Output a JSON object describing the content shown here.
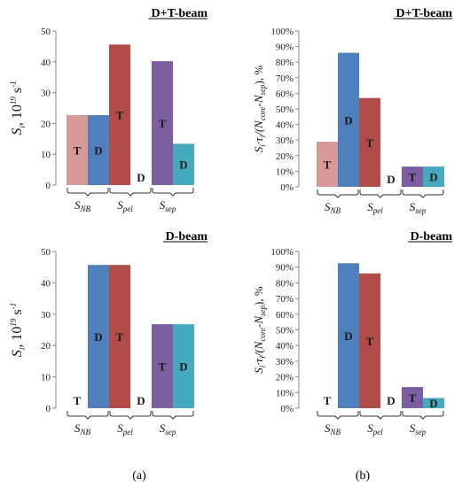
{
  "colors": {
    "T_NB": "#d89a98",
    "D_NB": "#4f7fbc",
    "T_pel": "#b14c48",
    "T_sep": "#7b5fa1",
    "D_sep": "#46a9bd",
    "axis": "#8a8a8a"
  },
  "captions": {
    "a": "(a)",
    "b": "(b)"
  },
  "chart_data": [
    {
      "id": "top-left",
      "type": "bar",
      "title": "D+T-beam",
      "ylabel": {
        "main": "S",
        "sub": "i",
        "rest": ", 10",
        "sup": "19",
        "unit": " s",
        "unitsup": "-1"
      },
      "ylim": [
        0,
        50
      ],
      "yticks": [
        0,
        10,
        20,
        30,
        40,
        50
      ],
      "groups": [
        {
          "main": "S",
          "sub": "NB"
        },
        {
          "main": "S",
          "sub": "pel"
        },
        {
          "main": "S",
          "sub": "sep"
        }
      ],
      "bars": [
        {
          "group": 0,
          "label": "T",
          "value": 22.7,
          "color": "#d89a98"
        },
        {
          "group": 0,
          "label": "D",
          "value": 22.7,
          "color": "#4f7fbc"
        },
        {
          "group": 1,
          "label": "T",
          "value": 45.6,
          "color": "#b14c48"
        },
        {
          "group": 1,
          "label": "D",
          "value": 0,
          "color": "#4f7fbc"
        },
        {
          "group": 2,
          "label": "T",
          "value": 40.2,
          "color": "#7b5fa1"
        },
        {
          "group": 2,
          "label": "D",
          "value": 13.4,
          "color": "#46a9bd"
        }
      ]
    },
    {
      "id": "top-right",
      "type": "bar",
      "title": "D+T-beam",
      "ylabel": {
        "pre": "S",
        "presub": "i",
        "dot": "·τ",
        "dotsub": "i",
        "open": "/(N",
        "coresub": "core",
        "minus": "-N",
        "sepsub": "sep",
        "close": "), %"
      },
      "ylim": [
        0,
        100
      ],
      "yticks": [
        "0%",
        "10%",
        "20%",
        "30%",
        "40%",
        "50%",
        "60%",
        "70%",
        "80%",
        "90%",
        "100%"
      ],
      "groups": [
        {
          "main": "S",
          "sub": "NB"
        },
        {
          "main": "S",
          "sub": "pel"
        },
        {
          "main": "S",
          "sub": "sep"
        }
      ],
      "bars": [
        {
          "group": 0,
          "label": "T",
          "value": 29,
          "color": "#d89a98"
        },
        {
          "group": 0,
          "label": "D",
          "value": 86,
          "color": "#4f7fbc"
        },
        {
          "group": 1,
          "label": "T",
          "value": 57,
          "color": "#b14c48"
        },
        {
          "group": 1,
          "label": "D",
          "value": 0,
          "color": "#4f7fbc"
        },
        {
          "group": 2,
          "label": "T",
          "value": 13,
          "color": "#7b5fa1"
        },
        {
          "group": 2,
          "label": "D",
          "value": 13,
          "color": "#46a9bd"
        }
      ]
    },
    {
      "id": "bottom-left",
      "type": "bar",
      "title": "D-beam",
      "ylabel": {
        "main": "S",
        "sub": "i",
        "rest": ", 10",
        "sup": "19",
        "unit": " s",
        "unitsup": "-1"
      },
      "ylim": [
        0,
        50
      ],
      "yticks": [
        0,
        10,
        20,
        30,
        40,
        50
      ],
      "groups": [
        {
          "main": "S",
          "sub": "NB"
        },
        {
          "main": "S",
          "sub": "pel"
        },
        {
          "main": "S",
          "sub": "sep"
        }
      ],
      "bars": [
        {
          "group": 0,
          "label": "T",
          "value": 0,
          "color": "#d89a98"
        },
        {
          "group": 0,
          "label": "D",
          "value": 45.7,
          "color": "#4f7fbc"
        },
        {
          "group": 1,
          "label": "T",
          "value": 45.7,
          "color": "#b14c48"
        },
        {
          "group": 1,
          "label": "D",
          "value": 0,
          "color": "#4f7fbc"
        },
        {
          "group": 2,
          "label": "T",
          "value": 26.8,
          "color": "#7b5fa1"
        },
        {
          "group": 2,
          "label": "D",
          "value": 26.8,
          "color": "#46a9bd"
        }
      ]
    },
    {
      "id": "bottom-right",
      "type": "bar",
      "title": "D-beam",
      "ylabel": {
        "pre": "S",
        "presub": "i",
        "dot": "·τ",
        "dotsub": "i",
        "open": "/(N",
        "coresub": "core",
        "minus": "-N",
        "sepsub": "sep",
        "close": "), %"
      },
      "ylim": [
        0,
        100
      ],
      "yticks": [
        "0%",
        "10%",
        "20%",
        "30%",
        "40%",
        "50%",
        "60%",
        "70%",
        "80%",
        "90%",
        "100%"
      ],
      "groups": [
        {
          "main": "S",
          "sub": "NB"
        },
        {
          "main": "S",
          "sub": "pel"
        },
        {
          "main": "S",
          "sub": "sep"
        }
      ],
      "bars": [
        {
          "group": 0,
          "label": "T",
          "value": 0,
          "color": "#d89a98"
        },
        {
          "group": 0,
          "label": "D",
          "value": 92.5,
          "color": "#4f7fbc"
        },
        {
          "group": 1,
          "label": "T",
          "value": 86,
          "color": "#b14c48"
        },
        {
          "group": 1,
          "label": "D",
          "value": 0,
          "color": "#4f7fbc"
        },
        {
          "group": 2,
          "label": "T",
          "value": 13.5,
          "color": "#7b5fa1"
        },
        {
          "group": 2,
          "label": "D",
          "value": 6.5,
          "color": "#46a9bd"
        }
      ]
    }
  ]
}
